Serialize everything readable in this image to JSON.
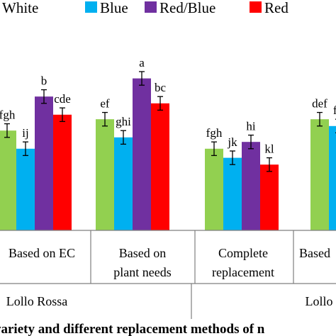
{
  "chart_data": {
    "type": "bar",
    "categories": [
      "Based on EC",
      "Based on plant needs",
      "Complete replacement",
      "Based on EC"
    ],
    "category_lines": [
      [
        "Based on EC"
      ],
      [
        "Based on",
        "plant needs"
      ],
      [
        "Complete",
        "replacement"
      ],
      [
        "Based"
      ]
    ],
    "groups": [
      "Lollo Rossa",
      "Lollo"
    ],
    "series": [
      {
        "name": "White",
        "color": "#92d050",
        "values": [
          4.4,
          4.9,
          3.6,
          4.9
        ],
        "errors": [
          0.3,
          0.3,
          0.3,
          0.3
        ],
        "labels": [
          "fgh",
          "ef",
          "fgh",
          "def"
        ]
      },
      {
        "name": "Blue",
        "color": "#00b0f0",
        "values": [
          3.6,
          4.1,
          3.2,
          4.6
        ],
        "errors": [
          0.3,
          0.3,
          0.3,
          0.3
        ],
        "labels": [
          "ij",
          "ghi",
          "jk",
          "fg"
        ]
      },
      {
        "name": "Red/Blue",
        "color": "#7030a0",
        "values": [
          5.9,
          6.7,
          3.9,
          null
        ],
        "errors": [
          0.3,
          0.3,
          0.3,
          null
        ],
        "labels": [
          "b",
          "a",
          "hi",
          ""
        ]
      },
      {
        "name": "Red",
        "color": "#ff0000",
        "values": [
          5.1,
          5.6,
          2.9,
          null
        ],
        "errors": [
          0.3,
          0.3,
          0.3,
          null
        ],
        "labels": [
          "cde",
          "bc",
          "kl",
          ""
        ]
      }
    ],
    "ylim": [
      0,
      10
    ],
    "legend_position": "top",
    "caption": "variety and different replacement methods of n"
  }
}
